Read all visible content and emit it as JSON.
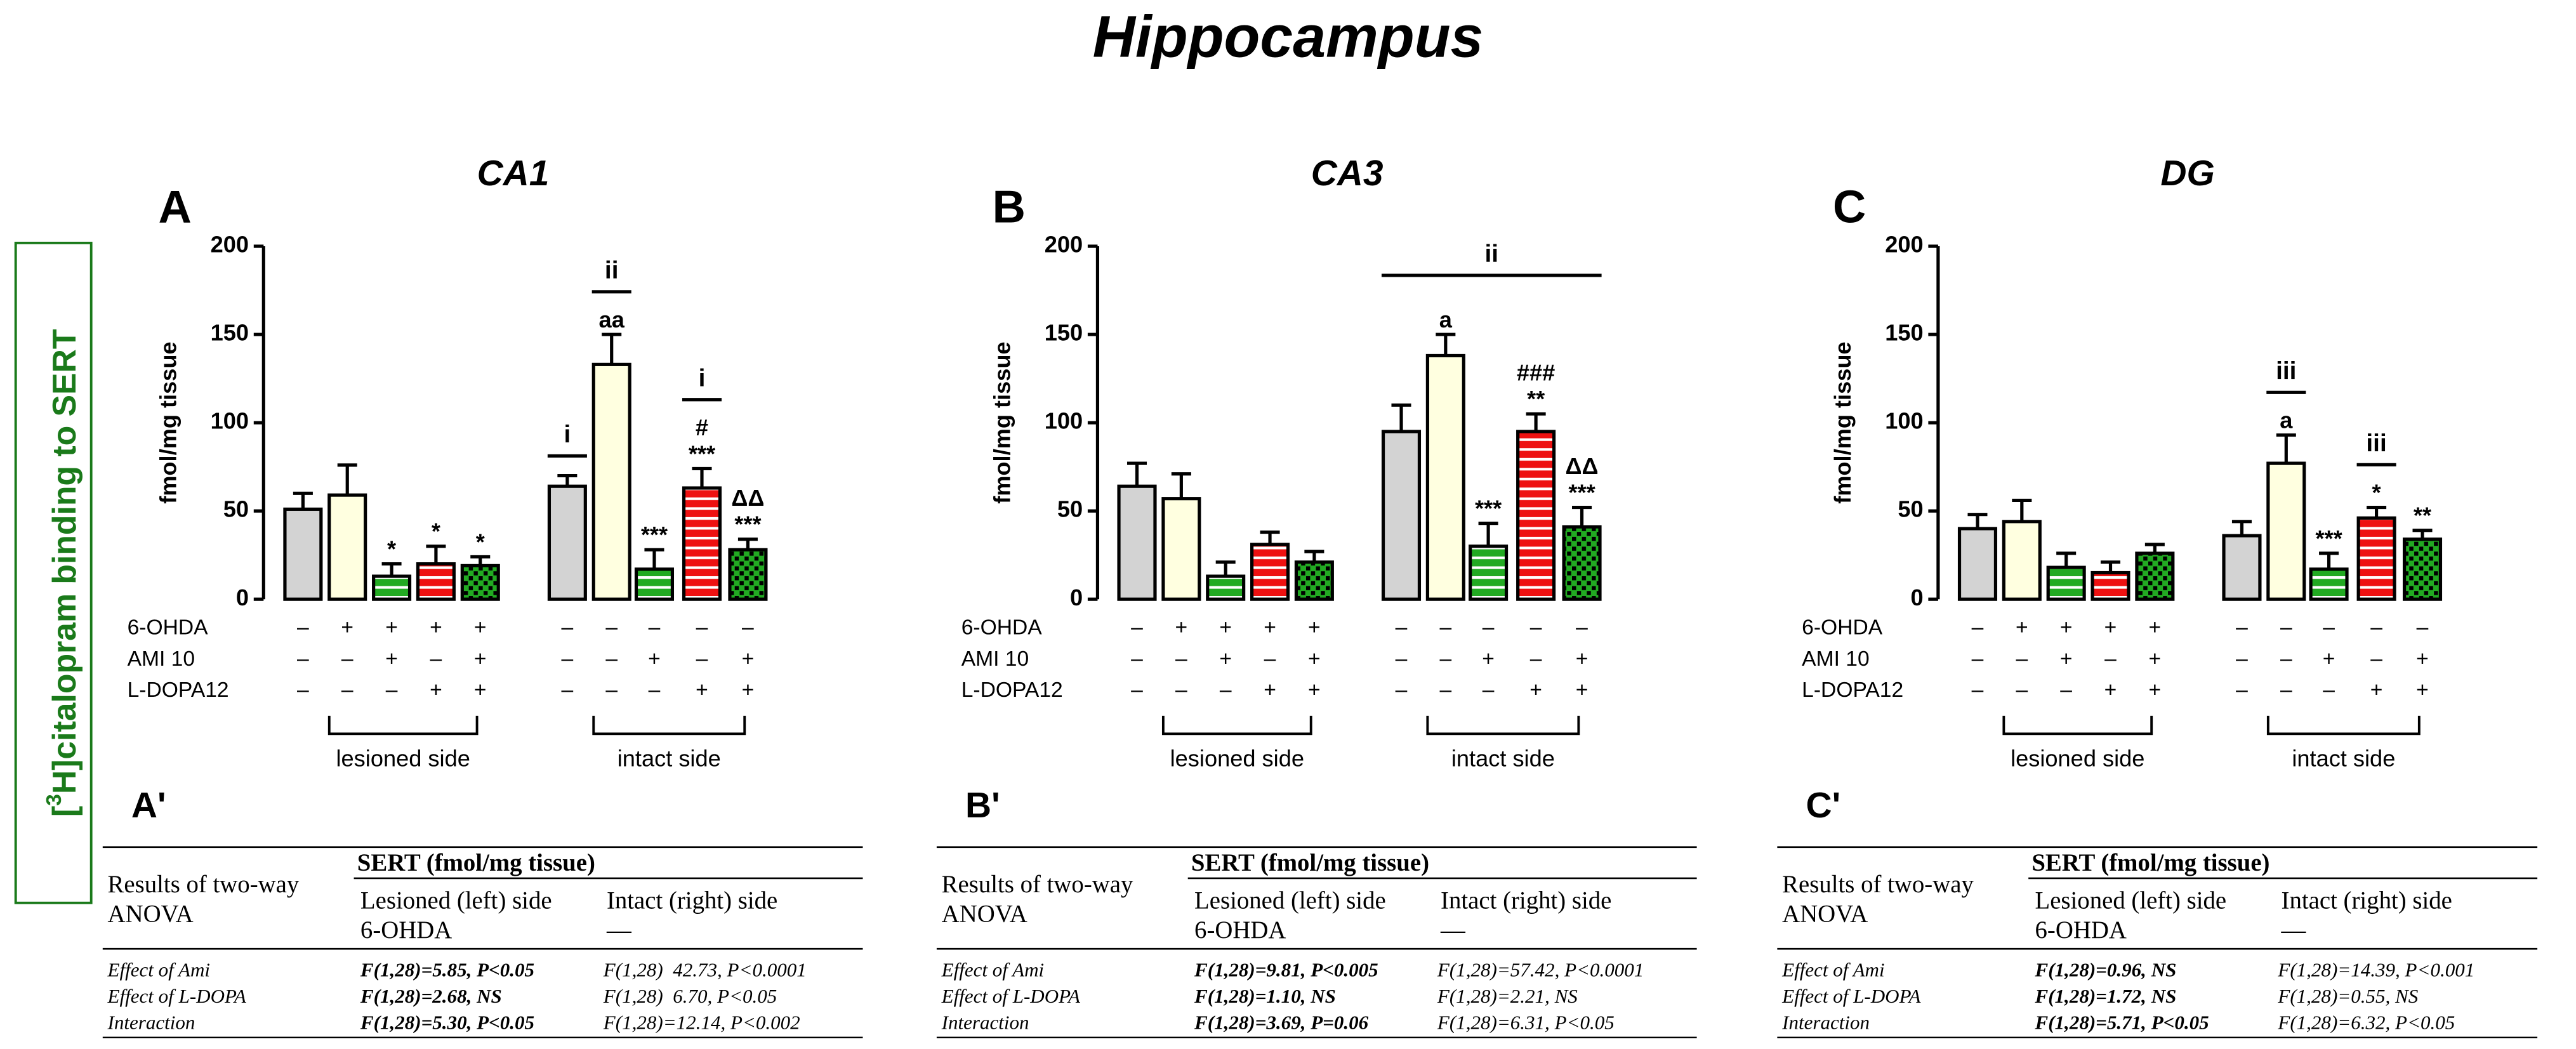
{
  "title": "Hippocampus",
  "y_label": {
    "open": "[",
    "sup": "3",
    "rest": "H]citalopram binding to SERT"
  },
  "bar_styles": [
    {
      "color": "#d3d3d3",
      "pattern": "solid"
    },
    {
      "color": "#ffffe0",
      "pattern": "solid"
    },
    {
      "color": "#22aa22",
      "pattern": "stripes"
    },
    {
      "color": "#ee1111",
      "pattern": "stripes"
    },
    {
      "color": "#22aa22",
      "pattern": "checks"
    }
  ],
  "chart_data": [
    {
      "type": "bar",
      "panel": "A",
      "title": "CA1",
      "y_label": "fmol/mg tissue",
      "ylim": [
        0,
        200
      ],
      "yticks": [
        0,
        50,
        100,
        150,
        200
      ],
      "values": [
        51,
        59,
        13,
        20,
        19,
        64,
        133,
        17,
        63,
        28
      ],
      "errors": [
        9,
        17,
        7,
        10,
        5,
        6,
        17,
        11,
        11,
        6
      ],
      "annotations": [
        null,
        null,
        [
          "*"
        ],
        [
          "*"
        ],
        [
          "*"
        ],
        null,
        [
          "aa"
        ],
        [
          "***"
        ],
        [
          "#",
          "***"
        ],
        [
          "ΔΔ",
          "***"
        ]
      ],
      "brackets": [
        {
          "label": "i",
          "bars": [
            5,
            5
          ]
        },
        {
          "label": "ii",
          "bars": [
            6,
            6
          ]
        },
        {
          "label": "i",
          "bars": [
            8,
            8
          ]
        }
      ],
      "treatments": [
        {
          "name": "6-OHDA",
          "signs": [
            "–",
            "+",
            "+",
            "+",
            "+",
            "–",
            "–",
            "–",
            "–",
            "–"
          ]
        },
        {
          "name": "AMI 10",
          "signs": [
            "–",
            "–",
            "+",
            "–",
            "+",
            "–",
            "–",
            "+",
            "–",
            "+"
          ]
        },
        {
          "name": "L-DOPA12",
          "signs": [
            "–",
            "–",
            "–",
            "+",
            "+",
            "–",
            "–",
            "–",
            "+",
            "+"
          ]
        }
      ],
      "groups": [
        "lesioned side",
        "intact side"
      ]
    },
    {
      "type": "bar",
      "panel": "B",
      "title": "CA3",
      "y_label": "fmol/mg tissue",
      "ylim": [
        0,
        200
      ],
      "yticks": [
        0,
        50,
        100,
        150,
        200
      ],
      "values": [
        64,
        57,
        13,
        31,
        21,
        95,
        138,
        30,
        95,
        41
      ],
      "errors": [
        13,
        14,
        8,
        7,
        6,
        15,
        12,
        13,
        10,
        11
      ],
      "annotations": [
        null,
        null,
        null,
        null,
        null,
        null,
        [
          "a"
        ],
        [
          "***"
        ],
        [
          "###",
          "**"
        ],
        [
          "ΔΔ",
          "***"
        ]
      ],
      "brackets": [
        {
          "label": "ii",
          "bars": [
            5,
            9
          ]
        }
      ],
      "treatments": [
        {
          "name": "6-OHDA",
          "signs": [
            "–",
            "+",
            "+",
            "+",
            "+",
            "–",
            "–",
            "–",
            "–",
            "–"
          ]
        },
        {
          "name": "AMI 10",
          "signs": [
            "–",
            "–",
            "+",
            "–",
            "+",
            "–",
            "–",
            "+",
            "–",
            "+"
          ]
        },
        {
          "name": "L-DOPA12",
          "signs": [
            "–",
            "–",
            "–",
            "+",
            "+",
            "–",
            "–",
            "–",
            "+",
            "+"
          ]
        }
      ],
      "groups": [
        "lesioned side",
        "intact side"
      ]
    },
    {
      "type": "bar",
      "panel": "C",
      "title": "DG",
      "y_label": "fmol/mg tissue",
      "ylim": [
        0,
        200
      ],
      "yticks": [
        0,
        50,
        100,
        150,
        200
      ],
      "values": [
        40,
        44,
        18,
        15,
        26,
        36,
        77,
        17,
        46,
        34
      ],
      "errors": [
        8,
        12,
        8,
        6,
        5,
        8,
        16,
        9,
        6,
        5
      ],
      "annotations": [
        null,
        null,
        null,
        null,
        null,
        null,
        [
          "a"
        ],
        [
          "***"
        ],
        [
          "*"
        ],
        [
          "**"
        ]
      ],
      "brackets": [
        {
          "label": "iii",
          "bars": [
            6,
            6
          ]
        },
        {
          "label": "iii",
          "bars": [
            8,
            8
          ]
        }
      ],
      "treatments": [
        {
          "name": "6-OHDA",
          "signs": [
            "–",
            "+",
            "+",
            "+",
            "+",
            "–",
            "–",
            "–",
            "–",
            "–"
          ]
        },
        {
          "name": "AMI 10",
          "signs": [
            "–",
            "–",
            "+",
            "–",
            "+",
            "–",
            "–",
            "+",
            "–",
            "+"
          ]
        },
        {
          "name": "L-DOPA12",
          "signs": [
            "–",
            "–",
            "–",
            "+",
            "+",
            "–",
            "–",
            "–",
            "+",
            "+"
          ]
        }
      ],
      "groups": [
        "lesioned side",
        "intact side"
      ]
    }
  ],
  "tables": [
    {
      "label": "A'",
      "corner": [
        "Results of two-way",
        "ANOVA"
      ],
      "title": "SERT (fmol/mg tissue)",
      "columns": [
        [
          "Lesioned (left) side",
          "6-OHDA"
        ],
        [
          "Intact (right) side",
          "—"
        ]
      ],
      "rows": [
        [
          "Effect of Ami",
          "F(1,28)=5.85, P<0.05",
          "F(1,28)  42.73, P<0.0001"
        ],
        [
          "Effect of L-DOPA",
          "F(1,28)=2.68, NS",
          "F(1,28)  6.70, P<0.05"
        ],
        [
          "Interaction",
          "F(1,28)=5.30, P<0.05",
          "F(1,28)=12.14, P<0.002"
        ]
      ]
    },
    {
      "label": "B'",
      "corner": [
        "Results of two-way",
        "ANOVA"
      ],
      "title": "SERT (fmol/mg tissue)",
      "columns": [
        [
          "Lesioned (left) side",
          "6-OHDA"
        ],
        [
          "Intact (right) side",
          "—"
        ]
      ],
      "rows": [
        [
          "Effect of Ami",
          "F(1,28)=9.81, P<0.005",
          "F(1,28)=57.42, P<0.0001"
        ],
        [
          "Effect of L-DOPA",
          "F(1,28)=1.10, NS",
          "F(1,28)=2.21, NS"
        ],
        [
          "Interaction",
          "F(1,28)=3.69, P=0.06",
          "F(1,28)=6.31, P<0.05"
        ]
      ]
    },
    {
      "label": "C'",
      "corner": [
        "Results of two-way",
        "ANOVA"
      ],
      "title": "SERT (fmol/mg tissue)",
      "columns": [
        [
          "Lesioned (left) side",
          "6-OHDA"
        ],
        [
          "Intact (right) side",
          "—"
        ]
      ],
      "rows": [
        [
          "Effect of Ami",
          "F(1,28)=0.96, NS",
          "F(1,28)=14.39, P<0.001"
        ],
        [
          "Effect of L-DOPA",
          "F(1,28)=1.72, NS",
          "F(1,28)=0.55, NS"
        ],
        [
          "Interaction",
          "F(1,28)=5.71, P<0.05",
          "F(1,28)=6.32, P<0.05"
        ]
      ]
    }
  ]
}
